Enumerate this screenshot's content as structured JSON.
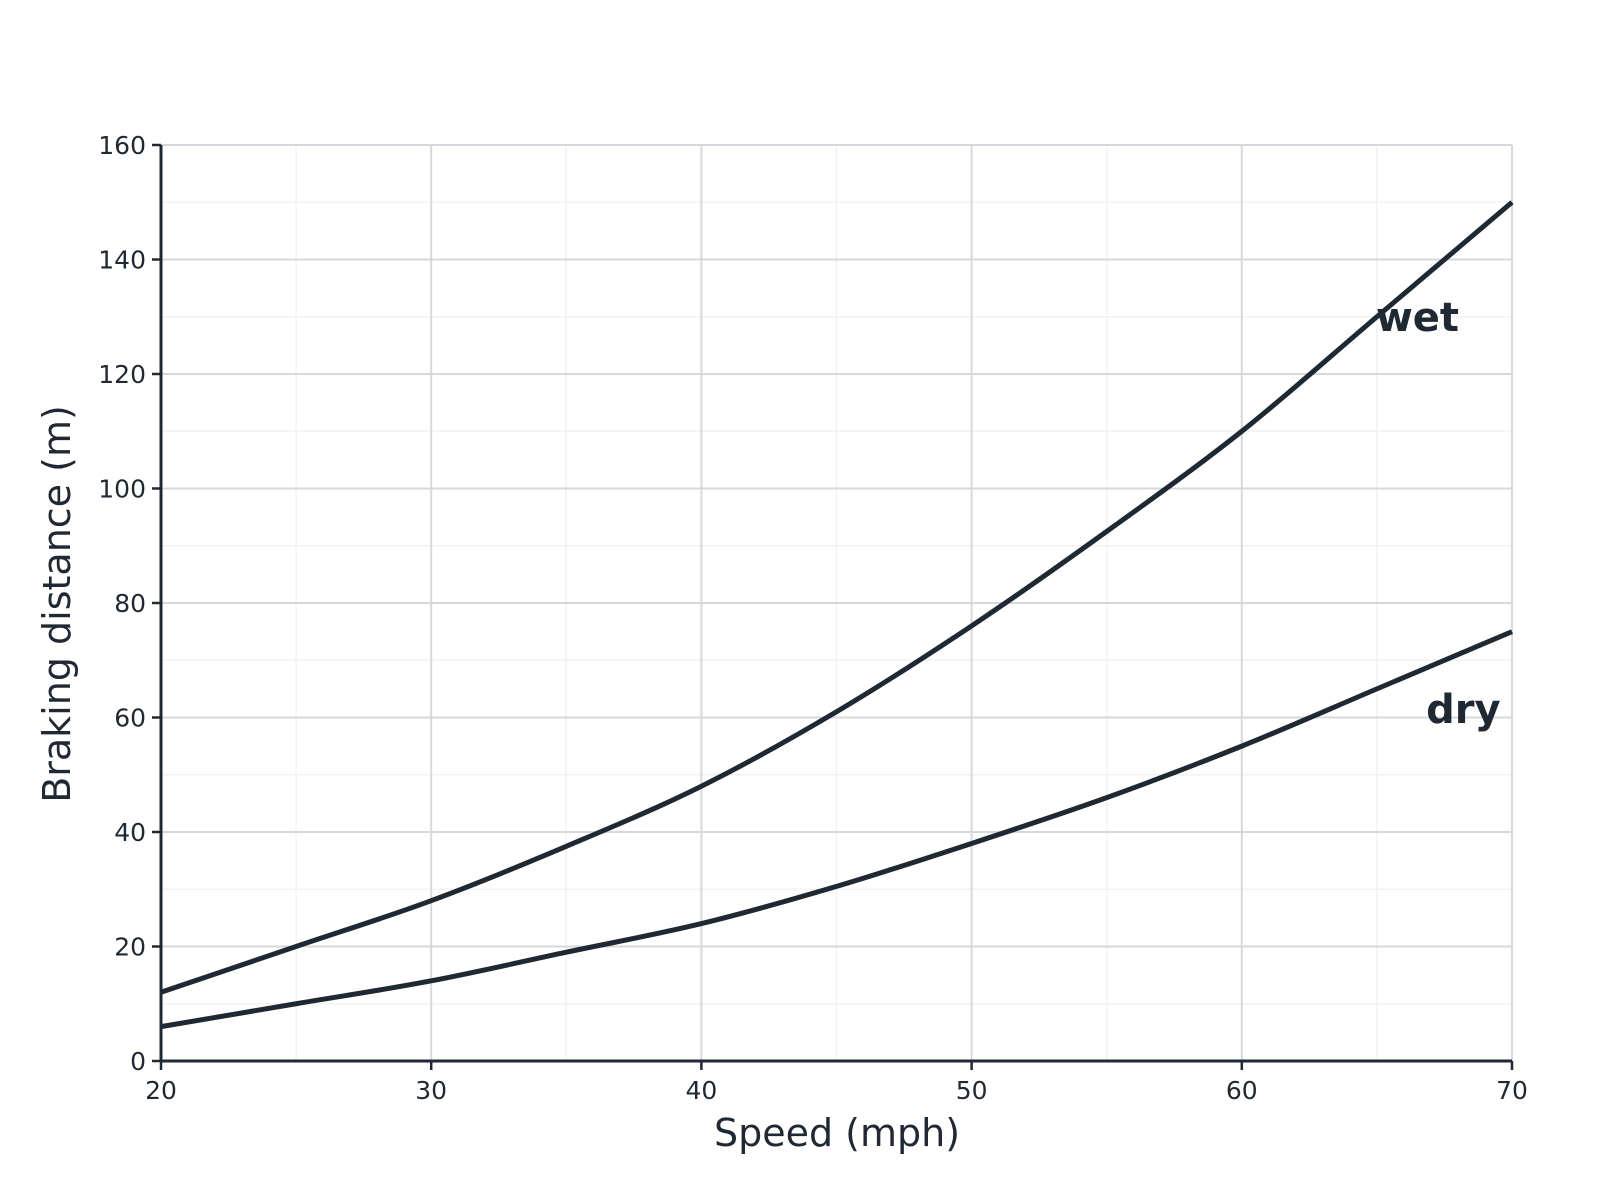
{
  "chart_data": {
    "type": "line",
    "xlabel": "Speed (mph)",
    "ylabel": "Braking distance (m)",
    "xlim": [
      20,
      70
    ],
    "ylim": [
      0,
      160
    ],
    "x_ticks": [
      20,
      30,
      40,
      50,
      60,
      70
    ],
    "y_ticks": [
      0,
      20,
      40,
      60,
      80,
      100,
      120,
      140,
      160
    ],
    "grid": true,
    "legend": "none (direct labels on lines)",
    "line_color": "#1f2933",
    "series": [
      {
        "name": "wet",
        "x": [
          20,
          25,
          30,
          35,
          40,
          45,
          50,
          55,
          60,
          65,
          70
        ],
        "values": [
          12,
          20,
          28,
          37.5,
          48,
          61,
          76,
          92.5,
          110,
          130,
          150
        ]
      },
      {
        "name": "dry",
        "x": [
          20,
          25,
          30,
          35,
          40,
          45,
          50,
          55,
          60,
          65,
          70
        ],
        "values": [
          6,
          10,
          14,
          19,
          24,
          30.5,
          38,
          46,
          55,
          65,
          75
        ]
      }
    ]
  }
}
